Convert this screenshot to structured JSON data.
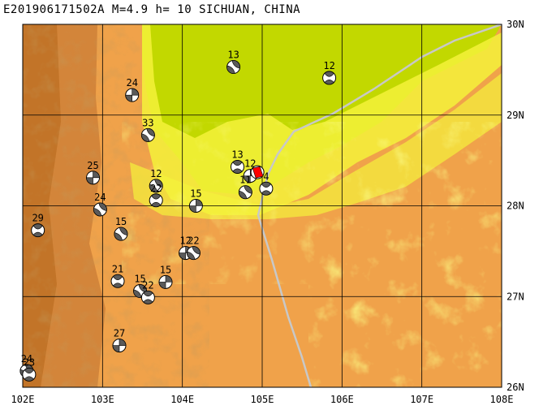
{
  "title": "E201906171502A M=4.9 h= 10 SICHUAN, CHINA",
  "lon_labels": [
    "102E",
    "103E",
    "104E",
    "105E",
    "106E",
    "107E",
    "108E"
  ],
  "lat_labels": [
    "30N",
    "29N",
    "28N",
    "27N",
    "26N"
  ],
  "colors": {
    "terrain_dark": "#c97a2a",
    "terrain_mid": "#e0983e",
    "terrain_light": "#f0a24a",
    "lowland_yellow": "#f4f23a",
    "basin_green": "#c2d800",
    "fault_line": "#c8c8c8",
    "grid": "#000000",
    "event_main": "#ff0000"
  },
  "mechanisms": [
    {
      "label": "13",
      "lon": 104.64,
      "lat": 29.53,
      "style": "a"
    },
    {
      "label": "12",
      "lon": 105.84,
      "lat": 29.41,
      "style": "b"
    },
    {
      "label": "24",
      "lon": 103.37,
      "lat": 29.22,
      "style": "c"
    },
    {
      "label": "33",
      "lon": 103.57,
      "lat": 28.78,
      "style": "a"
    },
    {
      "label": "13",
      "lon": 104.69,
      "lat": 28.43,
      "style": "b"
    },
    {
      "label": "12",
      "lon": 104.85,
      "lat": 28.33,
      "style": "c"
    },
    {
      "label": "11",
      "lon": 104.79,
      "lat": 28.15,
      "style": "a"
    },
    {
      "label": "4",
      "lon": 105.05,
      "lat": 28.19,
      "style": "b"
    },
    {
      "label": "25",
      "lon": 102.88,
      "lat": 28.31,
      "style": "c"
    },
    {
      "label": "12",
      "lon": 103.67,
      "lat": 28.22,
      "style": "a"
    },
    {
      "label": "22",
      "lon": 103.67,
      "lat": 28.06,
      "style": "b"
    },
    {
      "label": "24",
      "lon": 102.97,
      "lat": 27.96,
      "style": "a"
    },
    {
      "label": "15",
      "lon": 104.17,
      "lat": 28.0,
      "style": "c"
    },
    {
      "label": "29",
      "lon": 102.19,
      "lat": 27.73,
      "style": "b"
    },
    {
      "label": "15",
      "lon": 103.23,
      "lat": 27.69,
      "style": "a"
    },
    {
      "label": "12",
      "lon": 104.04,
      "lat": 27.48,
      "style": "c"
    },
    {
      "label": "22",
      "lon": 104.14,
      "lat": 27.48,
      "style": "a"
    },
    {
      "label": "21",
      "lon": 103.19,
      "lat": 27.17,
      "style": "b"
    },
    {
      "label": "15",
      "lon": 103.79,
      "lat": 27.16,
      "style": "c"
    },
    {
      "label": "15",
      "lon": 103.47,
      "lat": 27.06,
      "style": "a"
    },
    {
      "label": "22",
      "lon": 103.57,
      "lat": 26.99,
      "style": "b"
    },
    {
      "label": "27",
      "lon": 103.21,
      "lat": 26.46,
      "style": "c"
    },
    {
      "label": "24",
      "lon": 102.05,
      "lat": 26.18,
      "style": "a"
    },
    {
      "label": "23",
      "lon": 102.08,
      "lat": 26.14,
      "style": "b"
    }
  ],
  "main_event": {
    "lon": 104.94,
    "lat": 28.37
  }
}
